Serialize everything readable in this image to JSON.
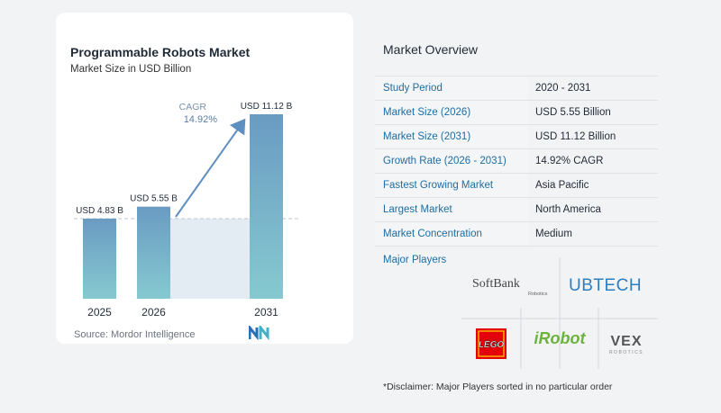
{
  "chart": {
    "title": "Programmable Robots Market",
    "subtitle": "Market Size in USD Billion",
    "source": "Source: Mordor Intelligence",
    "cagr_label": "CAGR",
    "cagr_value": "14.92%"
  },
  "chart_data": {
    "type": "bar",
    "categories": [
      "2025",
      "2026",
      "2031"
    ],
    "values": [
      4.83,
      5.55,
      11.12
    ],
    "value_labels": [
      "USD 4.83 B",
      "USD 5.55 B",
      "USD 11.12 B"
    ],
    "ylim": [
      0,
      12
    ],
    "grid": false,
    "annotations": [
      "CAGR 14.92%"
    ],
    "colors": {
      "bar_top": "#6a9bc2",
      "bar_bottom": "#86c9d0",
      "band": "#e3ebf3",
      "arrow": "#5d8fc0"
    }
  },
  "overview": {
    "title": "Market Overview",
    "rows": [
      {
        "key": "Study Period",
        "value": "2020 - 2031"
      },
      {
        "key": "Market Size (2026)",
        "value": "USD 5.55 Billion"
      },
      {
        "key": "Market Size (2031)",
        "value": "USD 11.12 Billion"
      },
      {
        "key": "Growth Rate (2026 - 2031)",
        "value": "14.92% CAGR"
      },
      {
        "key": "Fastest Growing Market",
        "value": "Asia Pacific"
      },
      {
        "key": "Largest Market",
        "value": "North America"
      },
      {
        "key": "Market Concentration",
        "value": "Medium"
      }
    ]
  },
  "players": {
    "label": "Major Players",
    "logos": {
      "softbank": "SoftBank",
      "softbank_sub": "Robotics",
      "ubtech": "UBTECH",
      "lego": "LEGO",
      "irobot": "iRobot",
      "vex": "VEX",
      "vex_sub": "ROBOTICS"
    }
  },
  "disclaimer": "*Disclaimer: Major Players sorted in no particular order",
  "colors": {
    "accent": "#1e6da3",
    "key_bg": "#f3f5f7"
  }
}
